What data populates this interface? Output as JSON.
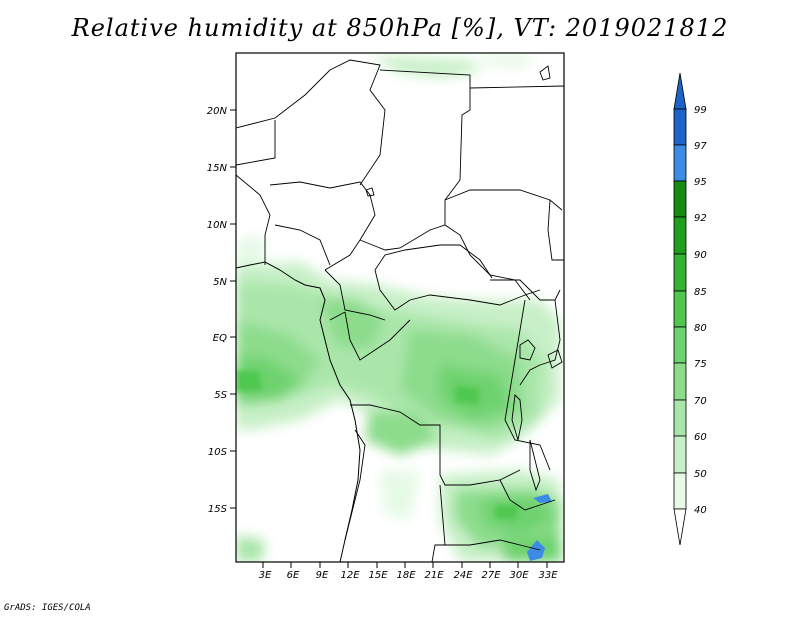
{
  "title": "Relative humidity at 850hPa [%], VT: 2019021812",
  "credit": "GrADS: IGES/COLA",
  "map": {
    "lat_ticks": [
      "20N",
      "15N",
      "10N",
      "5N",
      "EQ",
      "5S",
      "10S",
      "15S"
    ],
    "lon_ticks": [
      "3E",
      "6E",
      "9E",
      "12E",
      "15E",
      "18E",
      "21E",
      "24E",
      "27E",
      "30E",
      "33E"
    ]
  },
  "colorbar": {
    "levels": [
      "99",
      "97",
      "95",
      "92",
      "90",
      "85",
      "80",
      "75",
      "70",
      "60",
      "50",
      "40"
    ],
    "colors": {
      "99": "#1e64c8",
      "97": "#3c8ce6",
      "95": "#148c14",
      "92": "#1ea01e",
      "90": "#32b432",
      "85": "#50c850",
      "80": "#6ed26e",
      "75": "#8cdc8c",
      "70": "#aae6aa",
      "60": "#c8f0c8",
      "50": "#e6fae6"
    }
  }
}
